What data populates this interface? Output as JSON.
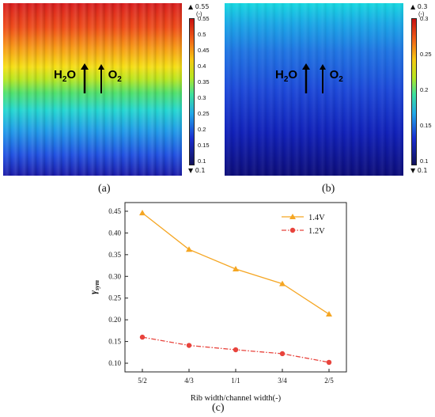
{
  "panels": {
    "a": {
      "label": "(a)",
      "colorbar": {
        "max_marker": "0.55",
        "unit": "(-)",
        "ticks": [
          "0.55",
          "0.5",
          "0.45",
          "0.4",
          "0.35",
          "0.3",
          "0.25",
          "0.2",
          "0.15",
          "0.1"
        ],
        "min_marker": "0.1"
      },
      "flow": {
        "left": "H",
        "left_sub": "2",
        "left_end": "O",
        "right": "O",
        "right_sub": "2"
      }
    },
    "b": {
      "label": "(b)",
      "colorbar": {
        "max_marker": "0.3",
        "unit": "(-)",
        "ticks": [
          "0.3",
          "0.25",
          "0.2",
          "0.15",
          "0.1"
        ],
        "min_marker": "0.1"
      },
      "flow": {
        "left": "H",
        "left_sub": "2",
        "left_end": "O",
        "right": "O",
        "right_sub": "2"
      }
    },
    "c": {
      "label": "(c)"
    }
  },
  "chart_data": {
    "type": "line",
    "categories": [
      "5/2",
      "4/3",
      "1/1",
      "3/4",
      "2/5"
    ],
    "series": [
      {
        "name": "1.4V",
        "values": [
          0.446,
          0.362,
          0.317,
          0.283,
          0.213
        ],
        "color": "#f5a623",
        "marker": "triangle",
        "line": "solid"
      },
      {
        "name": "1.2V",
        "values": [
          0.16,
          0.141,
          0.131,
          0.122,
          0.102
        ],
        "color": "#e8433c",
        "marker": "circle",
        "line": "dashdot"
      }
    ],
    "xlabel": "Rib width/channel width(-)",
    "ylabel": "γ",
    "ylabel_sub": "sym",
    "ylim": [
      0.08,
      0.47
    ],
    "yticks": [
      "0.10",
      "0.15",
      "0.20",
      "0.25",
      "0.30",
      "0.35",
      "0.40",
      "0.45"
    ],
    "grid": false,
    "legend_position": "top-right"
  }
}
